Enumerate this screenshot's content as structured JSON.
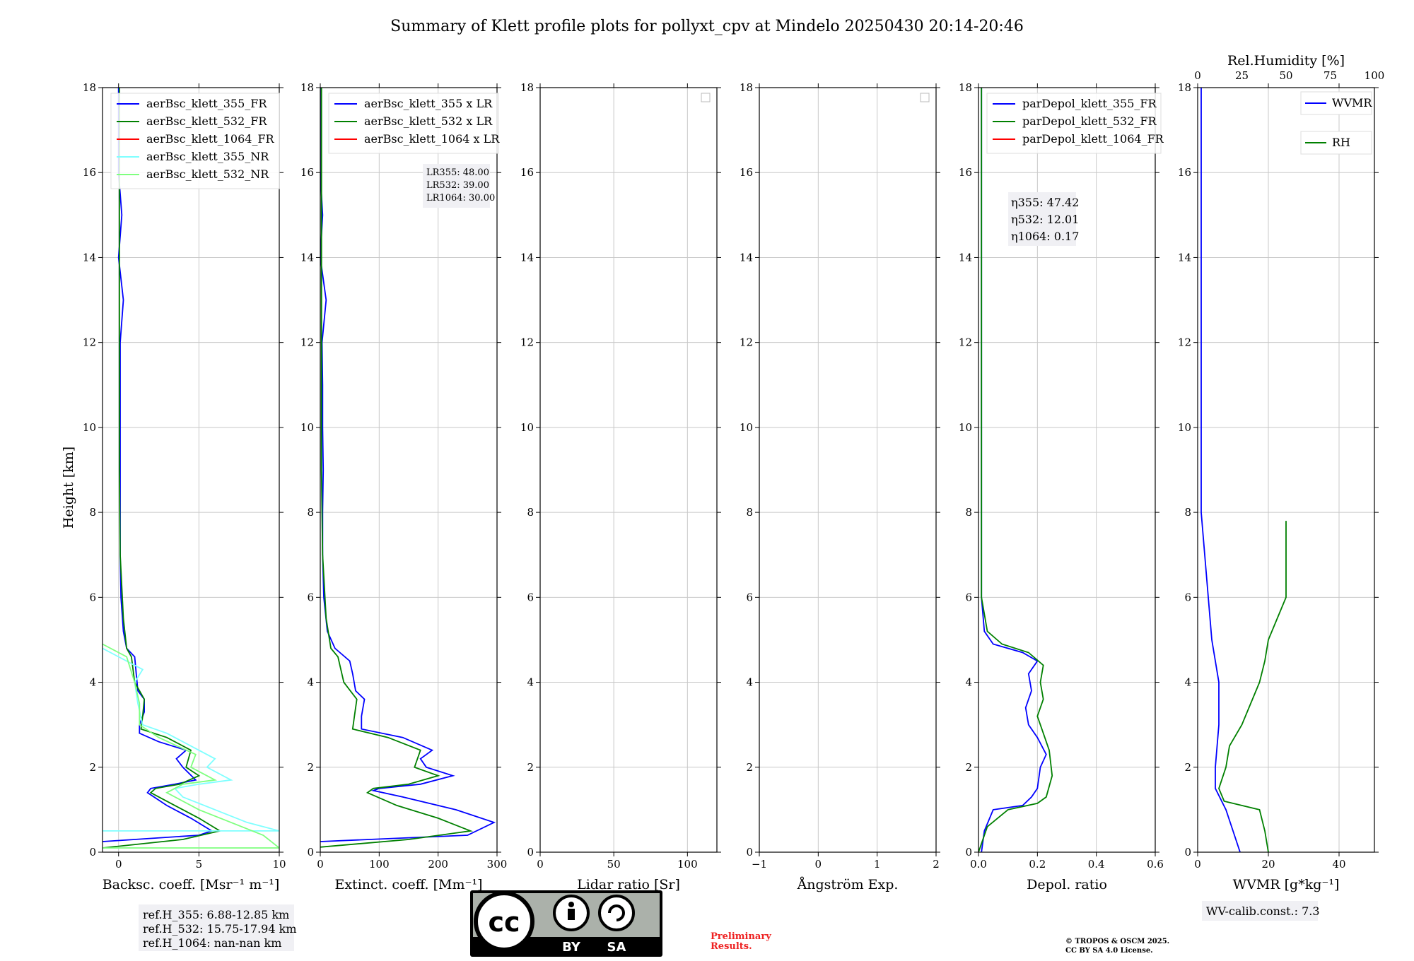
{
  "title": "Summary of Klett profile plots for pollyxt_cpv at Mindelo 20250430 20:14-20:46",
  "ylabel": "Height [km]",
  "colors": {
    "c355": "#0000ff",
    "c532": "#008000",
    "c1064": "#ff0000",
    "c355nr": "#7fffff",
    "c532nr": "#7fff7f",
    "grid": "#c8c8c8"
  },
  "chart_data": [
    {
      "type": "line",
      "id": "backscatter",
      "xlabel": "Backsc. coeff. [Msr⁻¹ m⁻¹]",
      "xlim": [
        -1,
        10
      ],
      "ylim": [
        0,
        18
      ],
      "xticks": [
        0,
        5,
        10
      ],
      "yticks": [
        0,
        2,
        4,
        6,
        8,
        10,
        12,
        14,
        16,
        18
      ],
      "legend": [
        "aerBsc_klett_355_FR",
        "aerBsc_klett_532_FR",
        "aerBsc_klett_1064_FR",
        "aerBsc_klett_355_NR",
        "aerBsc_klett_532_NR"
      ],
      "series": [
        {
          "name": "aerBsc_klett_355_FR",
          "color": "#0000ff",
          "points": [
            [
              -1,
              0.25
            ],
            [
              5,
              0.4
            ],
            [
              5.8,
              0.5
            ],
            [
              4.5,
              0.8
            ],
            [
              3,
              1.1
            ],
            [
              1.8,
              1.4
            ],
            [
              2,
              1.5
            ],
            [
              3.5,
              1.6
            ],
            [
              4.8,
              1.7
            ],
            [
              4,
              2
            ],
            [
              3.6,
              2.2
            ],
            [
              4.2,
              2.4
            ],
            [
              2.5,
              2.6
            ],
            [
              1.3,
              2.8
            ],
            [
              1.3,
              3
            ],
            [
              1.6,
              3.3
            ],
            [
              1.6,
              3.6
            ],
            [
              1.2,
              3.8
            ],
            [
              1.1,
              4.2
            ],
            [
              1,
              4.6
            ],
            [
              0.5,
              4.8
            ],
            [
              0.3,
              5.2
            ],
            [
              0.15,
              6
            ],
            [
              0.1,
              7
            ],
            [
              0.1,
              8
            ],
            [
              0.1,
              9
            ],
            [
              0.1,
              10
            ],
            [
              0.1,
              11
            ],
            [
              0.1,
              12
            ],
            [
              0.3,
              13
            ],
            [
              0,
              14
            ],
            [
              0.2,
              15
            ],
            [
              0,
              16
            ],
            [
              0,
              17
            ],
            [
              0,
              18
            ]
          ]
        },
        {
          "name": "aerBsc_klett_532_FR",
          "color": "#008000",
          "points": [
            [
              -1,
              0.1
            ],
            [
              4,
              0.3
            ],
            [
              6.3,
              0.5
            ],
            [
              5,
              0.8
            ],
            [
              3.5,
              1.1
            ],
            [
              2,
              1.4
            ],
            [
              2.3,
              1.5
            ],
            [
              3.8,
              1.6
            ],
            [
              5,
              1.8
            ],
            [
              4.2,
              2
            ],
            [
              4.5,
              2.4
            ],
            [
              3,
              2.7
            ],
            [
              1.4,
              2.9
            ],
            [
              1.5,
              3.2
            ],
            [
              1.6,
              3.6
            ],
            [
              1,
              4
            ],
            [
              0.8,
              4.6
            ],
            [
              0.5,
              4.8
            ],
            [
              0.3,
              5.5
            ],
            [
              0.1,
              7
            ],
            [
              0.05,
              9
            ],
            [
              0.05,
              12
            ],
            [
              0.05,
              18
            ]
          ]
        },
        {
          "name": "aerBsc_klett_355_NR",
          "color": "#7fffff",
          "points": [
            [
              -1,
              0.5
            ],
            [
              10,
              0.5
            ],
            [
              8,
              0.7
            ],
            [
              6,
              1
            ],
            [
              4,
              1.3
            ],
            [
              3.5,
              1.5
            ],
            [
              5,
              1.6
            ],
            [
              7,
              1.7
            ],
            [
              5.5,
              2
            ],
            [
              6,
              2.2
            ],
            [
              3,
              2.8
            ],
            [
              1.5,
              3
            ],
            [
              1.2,
              3.5
            ],
            [
              1,
              4
            ],
            [
              1.5,
              4.3
            ],
            [
              0,
              4.6
            ],
            [
              -1,
              4.8
            ]
          ]
        },
        {
          "name": "aerBsc_klett_532_NR",
          "color": "#7fff7f",
          "points": [
            [
              -1,
              0.1
            ],
            [
              10,
              0.1
            ],
            [
              9,
              0.4
            ],
            [
              7,
              0.7
            ],
            [
              5,
              1
            ],
            [
              3,
              1.4
            ],
            [
              4,
              1.6
            ],
            [
              6,
              1.7
            ],
            [
              4.5,
              2
            ],
            [
              4.8,
              2.3
            ],
            [
              2.5,
              2.7
            ],
            [
              1.3,
              3
            ],
            [
              1.3,
              3.5
            ],
            [
              1,
              4
            ],
            [
              0.5,
              4.6
            ],
            [
              -1,
              4.9
            ]
          ]
        }
      ],
      "annotation": [
        "ref.H_355: 6.88-12.85 km",
        "ref.H_532: 15.75-17.94 km",
        "ref.H_1064: nan-nan km"
      ]
    },
    {
      "type": "line",
      "id": "extinction",
      "xlabel": "Extinct. coeff. [Mm⁻¹]",
      "xlim": [
        0,
        300
      ],
      "ylim": [
        0,
        18
      ],
      "xticks": [
        0,
        100,
        200,
        300
      ],
      "yticks": [
        0,
        2,
        4,
        6,
        8,
        10,
        12,
        14,
        16,
        18
      ],
      "legend": [
        "aerBsc_klett_355 x LR",
        "aerBsc_klett_532 x LR",
        "aerBsc_klett_1064 x LR"
      ],
      "series": [
        {
          "name": "aerBsc_klett_355 x LR",
          "color": "#0000ff",
          "points": [
            [
              0,
              0.25
            ],
            [
              250,
              0.4
            ],
            [
              295,
              0.7
            ],
            [
              230,
              1
            ],
            [
              140,
              1.3
            ],
            [
              90,
              1.45
            ],
            [
              100,
              1.5
            ],
            [
              170,
              1.6
            ],
            [
              225,
              1.8
            ],
            [
              180,
              2
            ],
            [
              170,
              2.2
            ],
            [
              190,
              2.4
            ],
            [
              140,
              2.7
            ],
            [
              70,
              2.9
            ],
            [
              70,
              3.2
            ],
            [
              75,
              3.6
            ],
            [
              60,
              3.8
            ],
            [
              55,
              4.2
            ],
            [
              50,
              4.5
            ],
            [
              25,
              4.8
            ],
            [
              12,
              5.2
            ],
            [
              6,
              6
            ],
            [
              4,
              7
            ],
            [
              4,
              8
            ],
            [
              5,
              9
            ],
            [
              4,
              10
            ],
            [
              4,
              11
            ],
            [
              3,
              12
            ],
            [
              10,
              13
            ],
            [
              0,
              14
            ],
            [
              4,
              15
            ],
            [
              0,
              16
            ],
            [
              0,
              17
            ],
            [
              0,
              18
            ]
          ]
        },
        {
          "name": "aerBsc_klett_532 x LR",
          "color": "#008000",
          "points": [
            [
              0,
              0.12
            ],
            [
              150,
              0.3
            ],
            [
              255,
              0.5
            ],
            [
              200,
              0.8
            ],
            [
              130,
              1.1
            ],
            [
              80,
              1.4
            ],
            [
              90,
              1.5
            ],
            [
              150,
              1.6
            ],
            [
              200,
              1.8
            ],
            [
              160,
              2
            ],
            [
              170,
              2.4
            ],
            [
              115,
              2.7
            ],
            [
              55,
              2.9
            ],
            [
              58,
              3.2
            ],
            [
              62,
              3.6
            ],
            [
              40,
              4
            ],
            [
              30,
              4.6
            ],
            [
              18,
              4.8
            ],
            [
              10,
              5.5
            ],
            [
              4,
              7
            ],
            [
              2,
              9
            ],
            [
              2,
              12
            ],
            [
              2,
              18
            ]
          ]
        }
      ],
      "annotation": [
        "LR355: 48.00",
        "LR532: 39.00",
        "LR1064: 30.00"
      ]
    },
    {
      "type": "line",
      "id": "lidar-ratio",
      "xlabel": "Lidar ratio [Sr]",
      "xlim": [
        0,
        120
      ],
      "ylim": [
        0,
        18
      ],
      "xticks": [
        0,
        50,
        100
      ],
      "yticks": [
        0,
        2,
        4,
        6,
        8,
        10,
        12,
        14,
        16,
        18
      ],
      "series": []
    },
    {
      "type": "line",
      "id": "angstrom",
      "xlabel": "Ångström Exp.",
      "xlim": [
        -1,
        2
      ],
      "ylim": [
        0,
        18
      ],
      "xticks": [
        -1,
        0,
        1,
        2
      ],
      "yticks": [
        0,
        2,
        4,
        6,
        8,
        10,
        12,
        14,
        16,
        18
      ],
      "series": []
    },
    {
      "type": "line",
      "id": "depol",
      "xlabel": "Depol. ratio",
      "xlim": [
        0,
        0.6
      ],
      "ylim": [
        0,
        18
      ],
      "xticks": [
        0.0,
        0.2,
        0.4,
        0.6
      ],
      "yticks": [
        0,
        2,
        4,
        6,
        8,
        10,
        12,
        14,
        16,
        18
      ],
      "legend": [
        "parDepol_klett_355_FR",
        "parDepol_klett_532_FR",
        "parDepol_klett_1064_FR"
      ],
      "series": [
        {
          "name": "parDepol_klett_355_FR",
          "color": "#0000ff",
          "points": [
            [
              0.01,
              0
            ],
            [
              0.02,
              0.5
            ],
            [
              0.05,
              1
            ],
            [
              0.15,
              1.1
            ],
            [
              0.18,
              1.3
            ],
            [
              0.2,
              1.5
            ],
            [
              0.21,
              2
            ],
            [
              0.23,
              2.3
            ],
            [
              0.2,
              2.7
            ],
            [
              0.17,
              3
            ],
            [
              0.16,
              3.4
            ],
            [
              0.18,
              3.8
            ],
            [
              0.17,
              4.2
            ],
            [
              0.2,
              4.5
            ],
            [
              0.15,
              4.7
            ],
            [
              0.05,
              4.9
            ],
            [
              0.02,
              5.2
            ],
            [
              0.01,
              6
            ],
            [
              0.01,
              18
            ]
          ]
        },
        {
          "name": "parDepol_klett_532_FR",
          "color": "#008000",
          "points": [
            [
              0,
              0
            ],
            [
              0.03,
              0.6
            ],
            [
              0.1,
              1
            ],
            [
              0.2,
              1.15
            ],
            [
              0.23,
              1.3
            ],
            [
              0.25,
              1.8
            ],
            [
              0.24,
              2.4
            ],
            [
              0.22,
              2.8
            ],
            [
              0.2,
              3.2
            ],
            [
              0.22,
              3.6
            ],
            [
              0.21,
              4
            ],
            [
              0.22,
              4.4
            ],
            [
              0.17,
              4.7
            ],
            [
              0.08,
              4.9
            ],
            [
              0.03,
              5.2
            ],
            [
              0.01,
              6
            ],
            [
              0.01,
              18
            ]
          ]
        }
      ],
      "annotation": [
        "η355: 47.42",
        "η532: 12.01",
        "η1064: 0.17"
      ]
    },
    {
      "type": "line",
      "id": "wvmr-rh",
      "xlabel": "WVMR [g*kg⁻¹]",
      "x2label": "Rel.Humidity [%]",
      "xlim": [
        0,
        50
      ],
      "x2lim": [
        0,
        100
      ],
      "ylim": [
        0,
        18
      ],
      "xticks": [
        0,
        20,
        40
      ],
      "x2ticks": [
        0,
        25,
        50,
        75,
        100
      ],
      "yticks": [
        0,
        2,
        4,
        6,
        8,
        10,
        12,
        14,
        16,
        18
      ],
      "legend": [
        "WVMR",
        "RH"
      ],
      "series": [
        {
          "name": "WVMR",
          "color": "#0000ff",
          "points": [
            [
              12,
              0
            ],
            [
              10,
              0.5
            ],
            [
              8,
              1
            ],
            [
              5,
              1.5
            ],
            [
              5,
              2
            ],
            [
              6,
              3
            ],
            [
              6,
              4
            ],
            [
              4,
              5
            ],
            [
              3,
              6
            ],
            [
              2,
              7
            ],
            [
              1,
              8
            ],
            [
              1,
              10
            ],
            [
              1,
              12
            ],
            [
              1,
              14
            ],
            [
              1,
              16
            ],
            [
              1,
              18
            ]
          ]
        },
        {
          "name": "RH",
          "color": "#008000",
          "points": [
            [
              40,
              0
            ],
            [
              38,
              0.5
            ],
            [
              35,
              1
            ],
            [
              15,
              1.2
            ],
            [
              12,
              1.5
            ],
            [
              16,
              2
            ],
            [
              18,
              2.5
            ],
            [
              25,
              3
            ],
            [
              30,
              3.5
            ],
            [
              35,
              4
            ],
            [
              38,
              4.5
            ],
            [
              40,
              5
            ],
            [
              45,
              5.5
            ],
            [
              50,
              6
            ],
            [
              50,
              7.8
            ]
          ]
        }
      ],
      "annotation": [
        "WV-calib.const.: 7.3"
      ]
    }
  ],
  "footer": {
    "preliminary": [
      "Preliminary",
      "Results."
    ],
    "copyright": [
      "© TROPOS & OSCM 2025.",
      "CC BY SA 4.0 License."
    ],
    "cc_logo": {
      "main": "cc",
      "by": "BY",
      "sa": "SA"
    }
  }
}
